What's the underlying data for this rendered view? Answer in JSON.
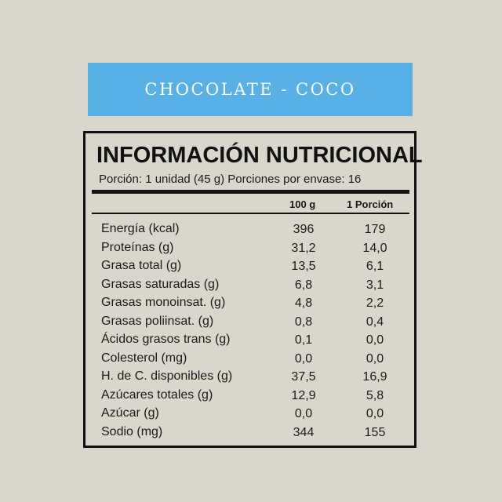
{
  "banner": {
    "title": "CHOCOLATE - COCO",
    "color": "#57b0e6"
  },
  "label": {
    "title": "INFORMACIÓN NUTRICIONAL",
    "serving": "Porción: 1 unidad (45 g) Porciones por envase: 16",
    "columns": [
      "100 g",
      "1 Porción"
    ],
    "rows": [
      {
        "name": "Energía (kcal)",
        "per100": "396",
        "portion": "179"
      },
      {
        "name": "Proteínas (g)",
        "per100": "31,2",
        "portion": "14,0"
      },
      {
        "name": "Grasa total (g)",
        "per100": "13,5",
        "portion": "6,1"
      },
      {
        "name": "Grasas saturadas (g)",
        "per100": "6,8",
        "portion": "3,1"
      },
      {
        "name": "Grasas monoinsat. (g)",
        "per100": "4,8",
        "portion": "2,2"
      },
      {
        "name": "Grasas poliinsat. (g)",
        "per100": "0,8",
        "portion": "0,4"
      },
      {
        "name": "Ácidos grasos trans (g)",
        "per100": "0,1",
        "portion": "0,0"
      },
      {
        "name": "Colesterol (mg)",
        "per100": "0,0",
        "portion": "0,0"
      },
      {
        "name": "H. de C. disponibles (g)",
        "per100": "37,5",
        "portion": "16,9"
      },
      {
        "name": "Azúcares totales (g)",
        "per100": "12,9",
        "portion": "5,8"
      },
      {
        "name": "Azúcar (g)",
        "per100": "0,0",
        "portion": "0,0"
      },
      {
        "name": "Sodio (mg)",
        "per100": "344",
        "portion": "155"
      }
    ]
  }
}
